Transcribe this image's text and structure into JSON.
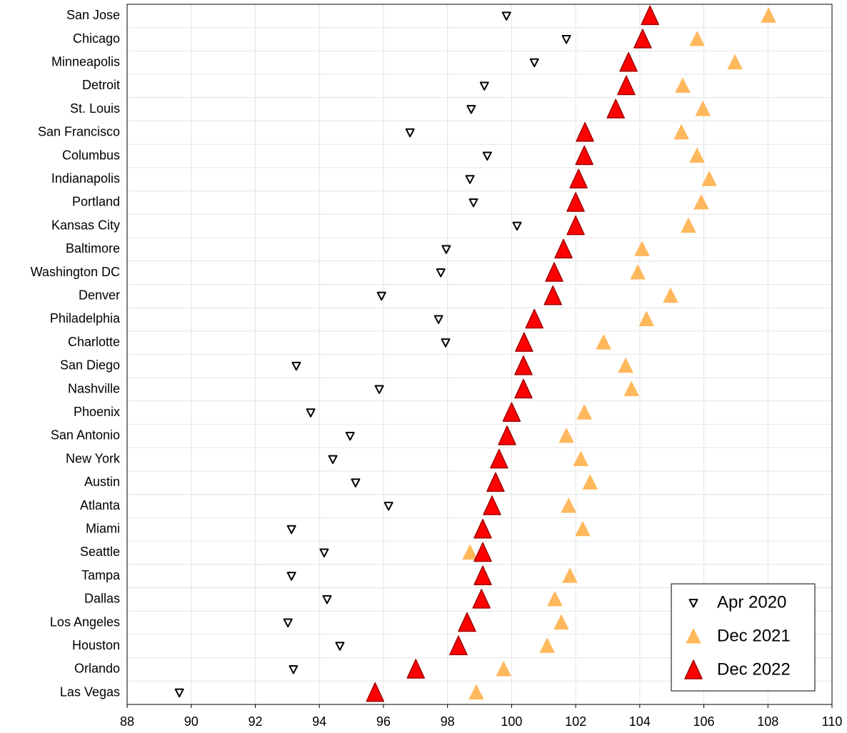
{
  "chart_data": {
    "type": "dot",
    "categories": [
      "San Jose",
      "Chicago",
      "Minneapolis",
      "Detroit",
      "St. Louis",
      "San Francisco",
      "Columbus",
      "Indianapolis",
      "Portland",
      "Kansas City",
      "Baltimore",
      "Washington DC",
      "Denver",
      "Philadelphia",
      "Charlotte",
      "San Diego",
      "Nashville",
      "Phoenix",
      "San Antonio",
      "New York",
      "Austin",
      "Atlanta",
      "Miami",
      "Seattle",
      "Tampa",
      "Dallas",
      "Los Angeles",
      "Houston",
      "Orlando",
      "Las Vegas"
    ],
    "series": [
      {
        "name": "Apr 2020",
        "color": "#000000",
        "marker": "triangle-down-open",
        "values": [
          99.84,
          101.71,
          100.71,
          99.15,
          98.74,
          96.83,
          99.24,
          98.7,
          98.81,
          100.17,
          97.96,
          97.79,
          95.94,
          97.72,
          97.94,
          93.28,
          95.87,
          93.73,
          94.96,
          94.42,
          95.13,
          96.16,
          93.13,
          94.15,
          93.13,
          94.24,
          93.02,
          94.64,
          93.19,
          89.63
        ]
      },
      {
        "name": "Dec 2021",
        "color": "#ffb85c",
        "marker": "triangle-up",
        "values": [
          108.02,
          105.79,
          106.97,
          105.34,
          105.97,
          105.3,
          105.79,
          106.17,
          105.92,
          105.52,
          104.07,
          103.94,
          104.96,
          104.21,
          102.87,
          103.56,
          103.74,
          102.27,
          101.71,
          102.16,
          102.45,
          101.78,
          102.22,
          98.7,
          101.82,
          101.35,
          101.55,
          101.11,
          99.75,
          98.9
        ]
      },
      {
        "name": "Dec 2022",
        "color": "#ff0000",
        "marker": "triangle-up-large",
        "values": [
          104.32,
          104.09,
          103.65,
          103.58,
          103.25,
          102.29,
          102.27,
          102.09,
          102.0,
          102.0,
          101.62,
          101.33,
          101.29,
          100.71,
          100.39,
          100.37,
          100.37,
          100.0,
          99.86,
          99.61,
          99.5,
          99.39,
          99.1,
          99.1,
          99.1,
          99.06,
          98.61,
          98.34,
          97.01,
          95.74
        ]
      }
    ],
    "xlim": [
      88,
      110
    ],
    "xticks": [
      88,
      90,
      92,
      94,
      96,
      98,
      100,
      102,
      104,
      106,
      108,
      110
    ],
    "grid": true,
    "legend": "lower right"
  }
}
